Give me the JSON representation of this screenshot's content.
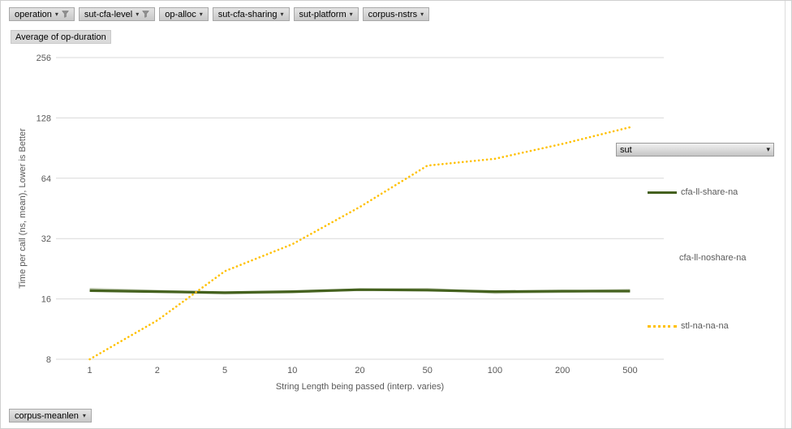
{
  "field_buttons": {
    "items": [
      {
        "label": "operation",
        "icon": "filter-dropdown"
      },
      {
        "label": "sut-cfa-level",
        "icon": "filter-dropdown"
      },
      {
        "label": "op-alloc",
        "icon": "dropdown"
      },
      {
        "label": "sut-cfa-sharing",
        "icon": "dropdown"
      },
      {
        "label": "sut-platform",
        "icon": "dropdown"
      },
      {
        "label": "corpus-nstrs",
        "icon": "dropdown"
      }
    ]
  },
  "value_button": {
    "label": "Average of op-duration"
  },
  "bottom_button": {
    "label": "corpus-meanlen"
  },
  "legend": {
    "field_label": "sut",
    "entries": [
      {
        "label": "cfa-ll-share-na",
        "marker": "solid-line",
        "color": "#44611e"
      },
      {
        "label": "cfa-ll-noshare-na",
        "marker": "none",
        "color": "#c2cbb4"
      },
      {
        "label": "stl-na-na-na",
        "marker": "dotted-line",
        "color": "#ffc000"
      }
    ]
  },
  "chart_data": {
    "type": "line",
    "x_scale": "category",
    "y_scale": "log2",
    "categories": [
      "1",
      "2",
      "5",
      "10",
      "20",
      "50",
      "100",
      "200",
      "500"
    ],
    "series": [
      {
        "name": "cfa-ll-noshare-na",
        "color": "#c2cbb4",
        "style": "solid",
        "values": [
          17.9,
          17.5,
          17.1,
          17.3,
          17.8,
          17.9,
          17.2,
          17.4,
          17.7
        ]
      },
      {
        "name": "cfa-ll-share-na",
        "color": "#44611e",
        "style": "solid",
        "values": [
          17.6,
          17.4,
          17.2,
          17.4,
          17.8,
          17.7,
          17.4,
          17.5,
          17.5
        ]
      },
      {
        "name": "stl-na-na-na",
        "color": "#ffc000",
        "style": "dotted",
        "values": [
          8,
          12.5,
          22,
          30,
          46,
          74,
          80,
          95,
          115
        ]
      }
    ],
    "yticks": [
      256,
      128,
      64,
      32,
      16,
      8
    ],
    "ylim": [
      8,
      256
    ],
    "xlabel": "String Length  being passed (interp. varies)",
    "ylabel": "Time per call (ns, mean),  Lower is Better",
    "grid": "horizontal",
    "legend_position": "right",
    "gridline_color": "#d9d9d9",
    "axis_text_color": "#595959"
  }
}
